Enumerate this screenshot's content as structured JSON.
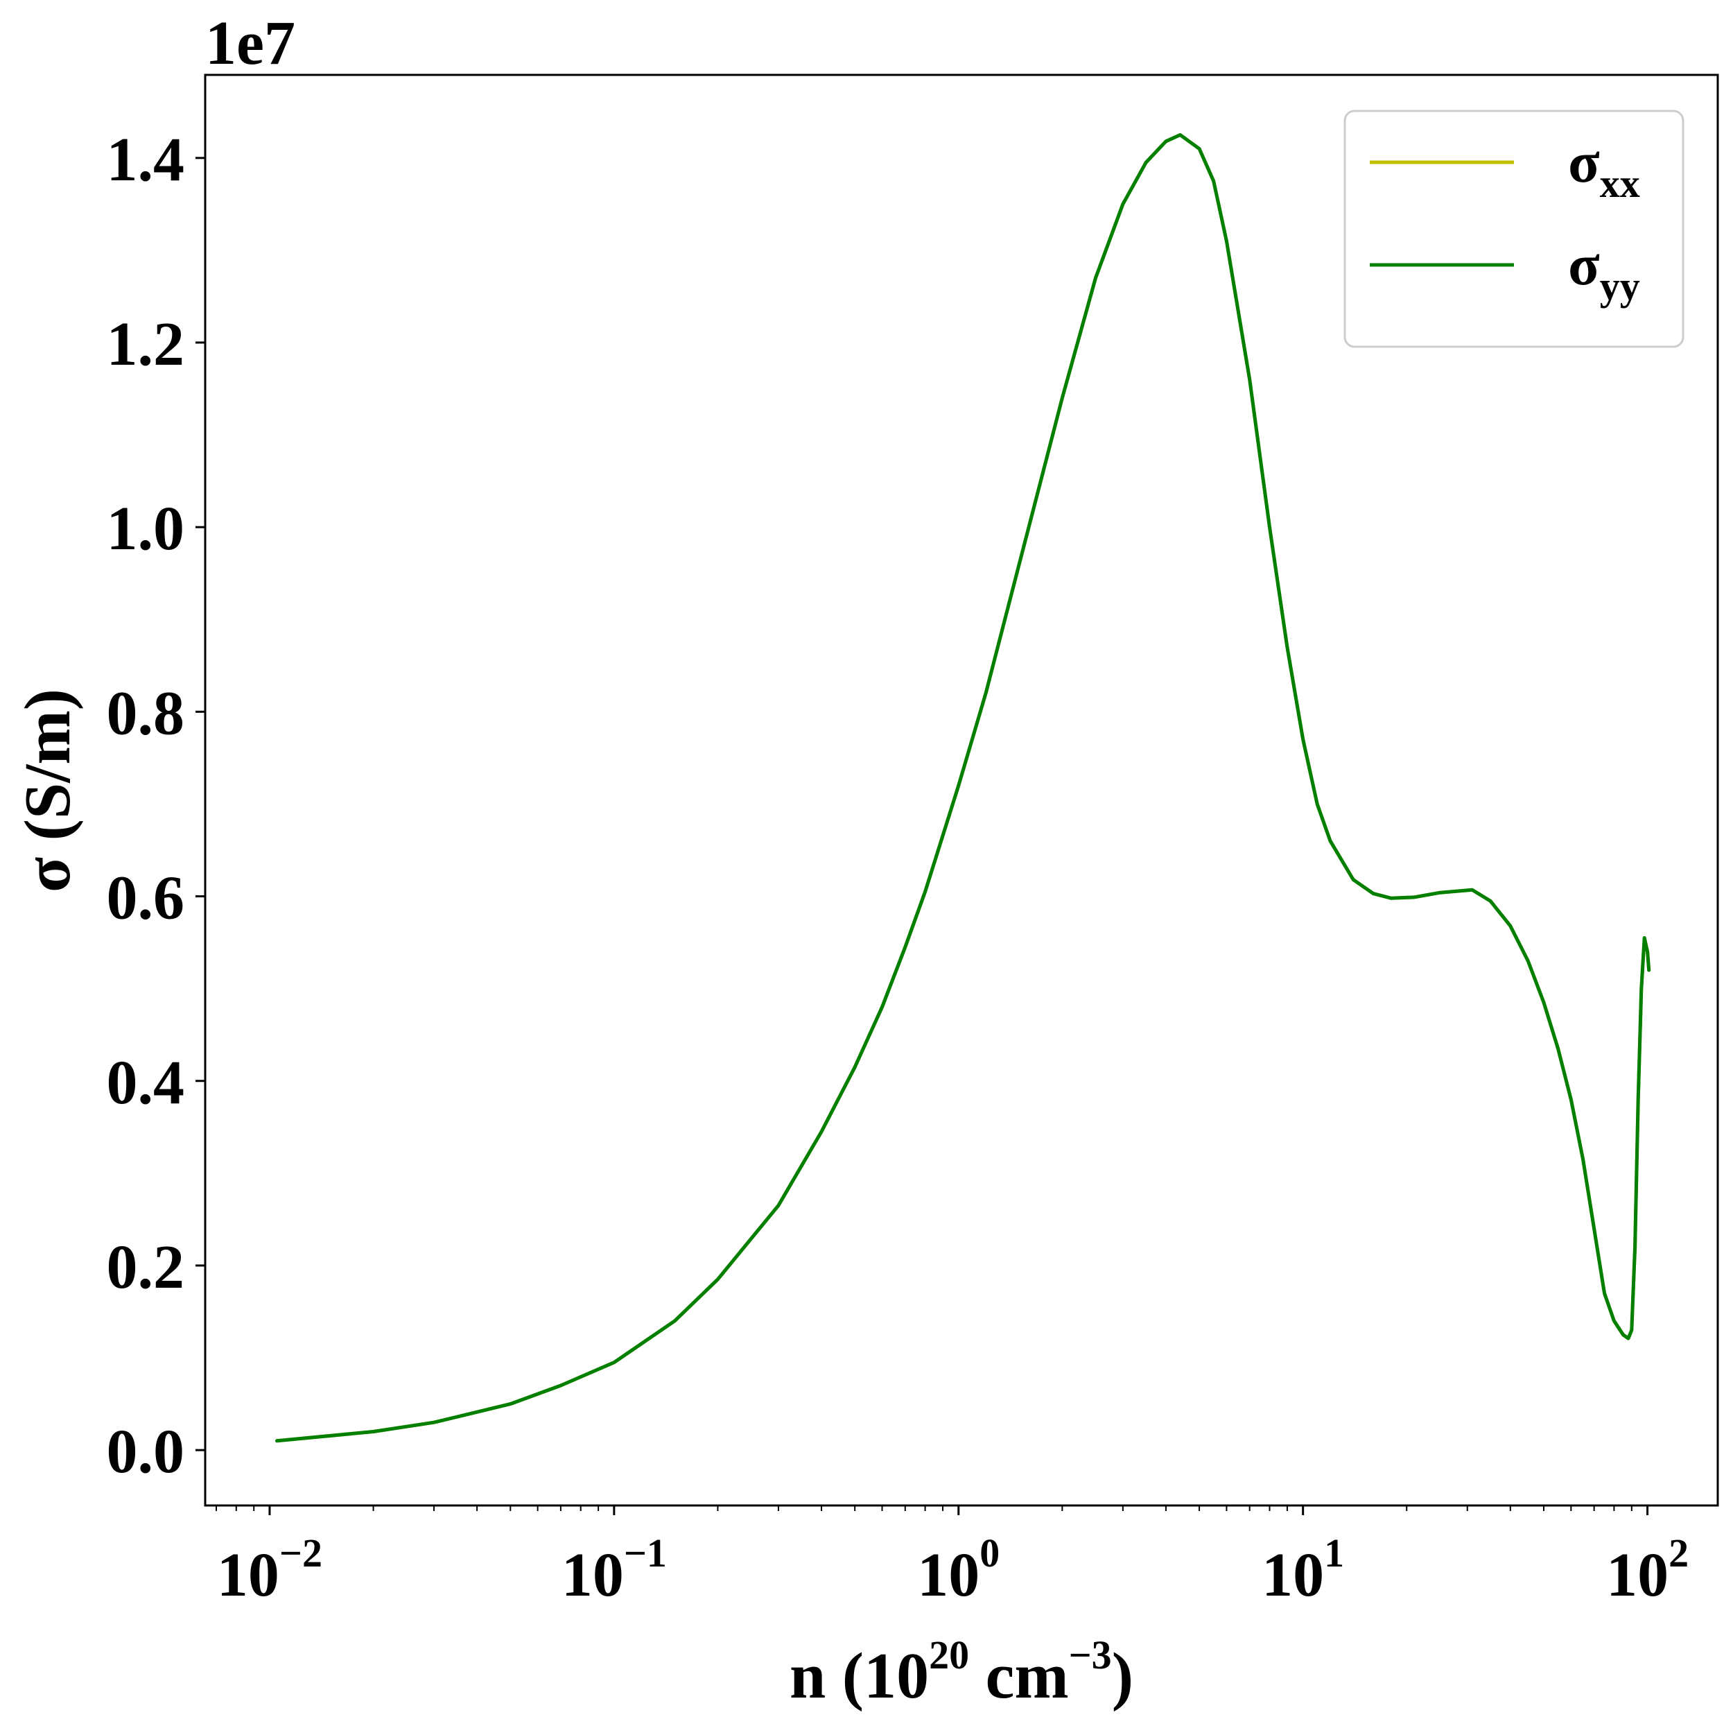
{
  "chart_data": {
    "type": "line",
    "xlabel": "n (10^20 cm^-3)",
    "xlabel_parts": {
      "lead": "n (10",
      "exp1": "20",
      "mid": " cm",
      "exp2": "−3",
      "tail": ")"
    },
    "ylabel": "σ (S/m)",
    "y_offset_text": "1e7",
    "xscale": "log",
    "xlim": [
      0.0065,
      160
    ],
    "ylim": [
      -0.06,
      1.49
    ],
    "y_multiplier": 10000000,
    "grid": false,
    "legend_position": "top-right",
    "x_ticks": [
      {
        "value": 0.01,
        "base": "10",
        "exp": "−2"
      },
      {
        "value": 0.1,
        "base": "10",
        "exp": "−1"
      },
      {
        "value": 1,
        "base": "10",
        "exp": "0"
      },
      {
        "value": 10,
        "base": "10",
        "exp": "1"
      },
      {
        "value": 100,
        "base": "10",
        "exp": "2"
      }
    ],
    "y_ticks": [
      {
        "value": 0.0,
        "label": "0.0"
      },
      {
        "value": 0.2,
        "label": "0.2"
      },
      {
        "value": 0.4,
        "label": "0.4"
      },
      {
        "value": 0.6,
        "label": "0.6"
      },
      {
        "value": 0.8,
        "label": "0.8"
      },
      {
        "value": 1.0,
        "label": "1.0"
      },
      {
        "value": 1.2,
        "label": "1.2"
      },
      {
        "value": 1.4,
        "label": "1.4"
      }
    ],
    "series": [
      {
        "name": "σxx",
        "name_main": "σ",
        "name_sub": "xx",
        "color": "#bfbf00",
        "x": [
          0.0105,
          0.02,
          0.03,
          0.05,
          0.07,
          0.1,
          0.15,
          0.2,
          0.3,
          0.4,
          0.5,
          0.6,
          0.7,
          0.8,
          1.0,
          1.2,
          1.5,
          2.0,
          2.5,
          3.0,
          3.5,
          4.0,
          4.4,
          5.0,
          5.5,
          6.0,
          7.0,
          8.0,
          9.0,
          10.0,
          11.0,
          12.0,
          14.0,
          16.0,
          18.0,
          21.0,
          25.0,
          31.0,
          35.0,
          40.0,
          45.0,
          50.0,
          55.0,
          60.0,
          65.0,
          70.0,
          75.0,
          80.0,
          85.0,
          88.0,
          90.0,
          92.0,
          94.0,
          96.0,
          98.0,
          100.0,
          101.0
        ],
        "y": [
          0.01,
          0.02,
          0.03,
          0.05,
          0.07,
          0.095,
          0.14,
          0.185,
          0.265,
          0.345,
          0.415,
          0.48,
          0.545,
          0.605,
          0.72,
          0.82,
          0.96,
          1.14,
          1.27,
          1.35,
          1.395,
          1.418,
          1.425,
          1.41,
          1.375,
          1.31,
          1.16,
          1.0,
          0.87,
          0.77,
          0.7,
          0.66,
          0.618,
          0.603,
          0.598,
          0.599,
          0.604,
          0.607,
          0.595,
          0.568,
          0.53,
          0.485,
          0.435,
          0.38,
          0.315,
          0.24,
          0.17,
          0.14,
          0.125,
          0.121,
          0.13,
          0.22,
          0.38,
          0.5,
          0.555,
          0.54,
          0.52
        ]
      },
      {
        "name": "σyy",
        "name_main": "σ",
        "name_sub": "yy",
        "color": "#007f00",
        "x": [
          0.0105,
          0.02,
          0.03,
          0.05,
          0.07,
          0.1,
          0.15,
          0.2,
          0.3,
          0.4,
          0.5,
          0.6,
          0.7,
          0.8,
          1.0,
          1.2,
          1.5,
          2.0,
          2.5,
          3.0,
          3.5,
          4.0,
          4.4,
          5.0,
          5.5,
          6.0,
          7.0,
          8.0,
          9.0,
          10.0,
          11.0,
          12.0,
          14.0,
          16.0,
          18.0,
          21.0,
          25.0,
          31.0,
          35.0,
          40.0,
          45.0,
          50.0,
          55.0,
          60.0,
          65.0,
          70.0,
          75.0,
          80.0,
          85.0,
          88.0,
          90.0,
          92.0,
          94.0,
          96.0,
          98.0,
          100.0,
          101.0
        ],
        "y": [
          0.01,
          0.02,
          0.03,
          0.05,
          0.07,
          0.095,
          0.14,
          0.185,
          0.265,
          0.345,
          0.415,
          0.48,
          0.545,
          0.605,
          0.72,
          0.82,
          0.96,
          1.14,
          1.27,
          1.35,
          1.395,
          1.418,
          1.425,
          1.41,
          1.375,
          1.31,
          1.16,
          1.0,
          0.87,
          0.77,
          0.7,
          0.66,
          0.618,
          0.603,
          0.598,
          0.599,
          0.604,
          0.607,
          0.595,
          0.568,
          0.53,
          0.485,
          0.435,
          0.38,
          0.315,
          0.24,
          0.17,
          0.14,
          0.125,
          0.121,
          0.13,
          0.22,
          0.38,
          0.5,
          0.555,
          0.54,
          0.52
        ]
      }
    ]
  }
}
